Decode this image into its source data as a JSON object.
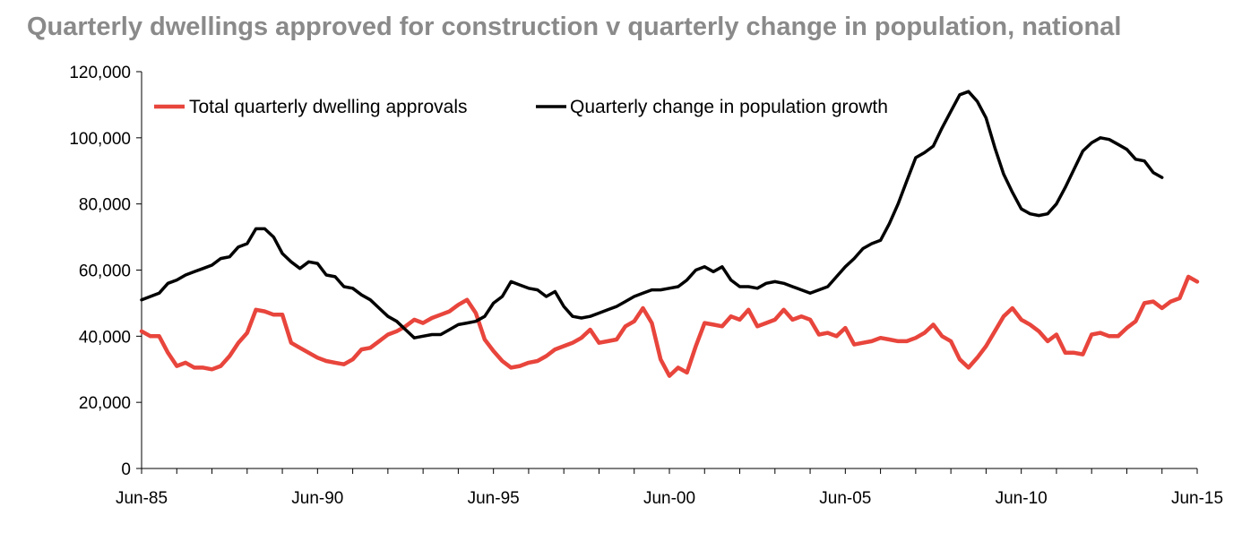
{
  "chart_data": {
    "type": "line",
    "title": "Quarterly dwellings approved for construction v quarterly change in population, national",
    "xlabel": "",
    "ylabel": "",
    "ylim": [
      0,
      120000
    ],
    "yticks": [
      "0",
      "20,000",
      "40,000",
      "60,000",
      "80,000",
      "100,000",
      "120,000"
    ],
    "xticks": [
      "Jun-85",
      "Jun-90",
      "Jun-95",
      "Jun-00",
      "Jun-05",
      "Jun-10",
      "Jun-15"
    ],
    "xlim": [
      "1985-06",
      "2015-06"
    ],
    "grid": false,
    "legend_position": "top-left",
    "series": [
      {
        "name": "Total quarterly dwelling approvals",
        "color": "#e8453c",
        "points": [
          [
            "1985-06",
            41500
          ],
          [
            "1985-09",
            40000
          ],
          [
            "1985-12",
            40000
          ],
          [
            "1986-03",
            35000
          ],
          [
            "1986-06",
            31000
          ],
          [
            "1986-09",
            32000
          ],
          [
            "1986-12",
            30500
          ],
          [
            "1987-03",
            30500
          ],
          [
            "1987-06",
            30000
          ],
          [
            "1987-09",
            31000
          ],
          [
            "1987-12",
            34000
          ],
          [
            "1988-03",
            38000
          ],
          [
            "1988-06",
            41000
          ],
          [
            "1988-09",
            48000
          ],
          [
            "1988-12",
            47500
          ],
          [
            "1989-03",
            46500
          ],
          [
            "1989-06",
            46500
          ],
          [
            "1989-09",
            38000
          ],
          [
            "1989-12",
            36500
          ],
          [
            "1990-03",
            35000
          ],
          [
            "1990-06",
            33500
          ],
          [
            "1990-09",
            32500
          ],
          [
            "1990-12",
            32000
          ],
          [
            "1991-03",
            31500
          ],
          [
            "1991-06",
            33000
          ],
          [
            "1991-09",
            36000
          ],
          [
            "1991-12",
            36500
          ],
          [
            "1992-03",
            38500
          ],
          [
            "1992-06",
            40500
          ],
          [
            "1992-09",
            41500
          ],
          [
            "1992-12",
            43000
          ],
          [
            "1993-03",
            45000
          ],
          [
            "1993-06",
            44000
          ],
          [
            "1993-09",
            45500
          ],
          [
            "1993-12",
            46500
          ],
          [
            "1994-03",
            47500
          ],
          [
            "1994-06",
            49500
          ],
          [
            "1994-09",
            51000
          ],
          [
            "1994-12",
            47000
          ],
          [
            "1995-03",
            39000
          ],
          [
            "1995-06",
            35500
          ],
          [
            "1995-09",
            32500
          ],
          [
            "1995-12",
            30500
          ],
          [
            "1996-03",
            31000
          ],
          [
            "1996-06",
            32000
          ],
          [
            "1996-09",
            32500
          ],
          [
            "1996-12",
            34000
          ],
          [
            "1997-03",
            36000
          ],
          [
            "1997-06",
            37000
          ],
          [
            "1997-09",
            38000
          ],
          [
            "1997-12",
            39500
          ],
          [
            "1998-03",
            42000
          ],
          [
            "1998-06",
            38000
          ],
          [
            "1998-09",
            38500
          ],
          [
            "1998-12",
            39000
          ],
          [
            "1999-03",
            43000
          ],
          [
            "1999-06",
            44500
          ],
          [
            "1999-09",
            48500
          ],
          [
            "1999-12",
            44000
          ],
          [
            "2000-03",
            33000
          ],
          [
            "2000-06",
            28000
          ],
          [
            "2000-09",
            30500
          ],
          [
            "2000-12",
            29000
          ],
          [
            "2001-03",
            37000
          ],
          [
            "2001-06",
            44000
          ],
          [
            "2001-09",
            43500
          ],
          [
            "2001-12",
            43000
          ],
          [
            "2002-03",
            46000
          ],
          [
            "2002-06",
            45000
          ],
          [
            "2002-09",
            48000
          ],
          [
            "2002-12",
            43000
          ],
          [
            "2003-03",
            44000
          ],
          [
            "2003-06",
            45000
          ],
          [
            "2003-09",
            48000
          ],
          [
            "2003-12",
            45000
          ],
          [
            "2004-03",
            46000
          ],
          [
            "2004-06",
            45000
          ],
          [
            "2004-09",
            40500
          ],
          [
            "2004-12",
            41000
          ],
          [
            "2005-03",
            40000
          ],
          [
            "2005-06",
            42500
          ],
          [
            "2005-09",
            37500
          ],
          [
            "2005-12",
            38000
          ],
          [
            "2006-03",
            38500
          ],
          [
            "2006-06",
            39500
          ],
          [
            "2006-09",
            39000
          ],
          [
            "2006-12",
            38500
          ],
          [
            "2007-03",
            38500
          ],
          [
            "2007-06",
            39500
          ],
          [
            "2007-09",
            41000
          ],
          [
            "2007-12",
            43500
          ],
          [
            "2008-03",
            40000
          ],
          [
            "2008-06",
            38500
          ],
          [
            "2008-09",
            33000
          ],
          [
            "2008-12",
            30500
          ],
          [
            "2009-03",
            33500
          ],
          [
            "2009-06",
            37000
          ],
          [
            "2009-09",
            41500
          ],
          [
            "2009-12",
            46000
          ],
          [
            "2010-03",
            48500
          ],
          [
            "2010-06",
            45000
          ],
          [
            "2010-09",
            43500
          ],
          [
            "2010-12",
            41500
          ],
          [
            "2011-03",
            38500
          ],
          [
            "2011-06",
            40500
          ],
          [
            "2011-09",
            35000
          ],
          [
            "2011-12",
            35000
          ],
          [
            "2012-03",
            34500
          ],
          [
            "2012-06",
            40500
          ],
          [
            "2012-09",
            41000
          ],
          [
            "2012-12",
            40000
          ],
          [
            "2013-03",
            40000
          ],
          [
            "2013-06",
            42500
          ],
          [
            "2013-09",
            44500
          ],
          [
            "2013-12",
            50000
          ],
          [
            "2014-03",
            50500
          ],
          [
            "2014-06",
            48500
          ],
          [
            "2014-09",
            50500
          ],
          [
            "2014-12",
            51500
          ],
          [
            "2015-03",
            58000
          ],
          [
            "2015-06",
            56500
          ]
        ]
      },
      {
        "name": "Quarterly change in population growth",
        "color": "#000000",
        "points": [
          [
            "1985-06",
            51000
          ],
          [
            "1985-09",
            52000
          ],
          [
            "1985-12",
            53000
          ],
          [
            "1986-03",
            56000
          ],
          [
            "1986-06",
            57000
          ],
          [
            "1986-09",
            58500
          ],
          [
            "1986-12",
            59500
          ],
          [
            "1987-03",
            60500
          ],
          [
            "1987-06",
            61500
          ],
          [
            "1987-09",
            63500
          ],
          [
            "1987-12",
            64000
          ],
          [
            "1988-03",
            67000
          ],
          [
            "1988-06",
            68000
          ],
          [
            "1988-09",
            72500
          ],
          [
            "1988-12",
            72500
          ],
          [
            "1989-03",
            70000
          ],
          [
            "1989-06",
            65000
          ],
          [
            "1989-09",
            62500
          ],
          [
            "1989-12",
            60500
          ],
          [
            "1990-03",
            62500
          ],
          [
            "1990-06",
            62000
          ],
          [
            "1990-09",
            58500
          ],
          [
            "1990-12",
            58000
          ],
          [
            "1991-03",
            55000
          ],
          [
            "1991-06",
            54500
          ],
          [
            "1991-09",
            52500
          ],
          [
            "1991-12",
            51000
          ],
          [
            "1992-03",
            48500
          ],
          [
            "1992-06",
            46000
          ],
          [
            "1992-09",
            44500
          ],
          [
            "1992-12",
            42000
          ],
          [
            "1993-03",
            39500
          ],
          [
            "1993-06",
            40000
          ],
          [
            "1993-09",
            40500
          ],
          [
            "1993-12",
            40500
          ],
          [
            "1994-03",
            42000
          ],
          [
            "1994-06",
            43500
          ],
          [
            "1994-09",
            44000
          ],
          [
            "1994-12",
            44500
          ],
          [
            "1995-03",
            46000
          ],
          [
            "1995-06",
            50000
          ],
          [
            "1995-09",
            52000
          ],
          [
            "1995-12",
            56500
          ],
          [
            "1996-03",
            55500
          ],
          [
            "1996-06",
            54500
          ],
          [
            "1996-09",
            54000
          ],
          [
            "1996-12",
            52000
          ],
          [
            "1997-03",
            53500
          ],
          [
            "1997-06",
            49000
          ],
          [
            "1997-09",
            46000
          ],
          [
            "1997-12",
            45500
          ],
          [
            "1998-03",
            46000
          ],
          [
            "1998-06",
            47000
          ],
          [
            "1998-09",
            48000
          ],
          [
            "1998-12",
            49000
          ],
          [
            "1999-03",
            50500
          ],
          [
            "1999-06",
            52000
          ],
          [
            "1999-09",
            53000
          ],
          [
            "1999-12",
            54000
          ],
          [
            "2000-03",
            54000
          ],
          [
            "2000-06",
            54500
          ],
          [
            "2000-09",
            55000
          ],
          [
            "2000-12",
            57000
          ],
          [
            "2001-03",
            60000
          ],
          [
            "2001-06",
            61000
          ],
          [
            "2001-09",
            59500
          ],
          [
            "2001-12",
            61000
          ],
          [
            "2002-03",
            57000
          ],
          [
            "2002-06",
            55000
          ],
          [
            "2002-09",
            55000
          ],
          [
            "2002-12",
            54500
          ],
          [
            "2003-03",
            56000
          ],
          [
            "2003-06",
            56500
          ],
          [
            "2003-09",
            56000
          ],
          [
            "2003-12",
            55000
          ],
          [
            "2004-03",
            54000
          ],
          [
            "2004-06",
            53000
          ],
          [
            "2004-09",
            54000
          ],
          [
            "2004-12",
            55000
          ],
          [
            "2005-03",
            58000
          ],
          [
            "2005-06",
            61000
          ],
          [
            "2005-09",
            63500
          ],
          [
            "2005-12",
            66500
          ],
          [
            "2006-03",
            68000
          ],
          [
            "2006-06",
            69000
          ],
          [
            "2006-09",
            74000
          ],
          [
            "2006-12",
            80000
          ],
          [
            "2007-03",
            87000
          ],
          [
            "2007-06",
            94000
          ],
          [
            "2007-09",
            95500
          ],
          [
            "2007-12",
            97500
          ],
          [
            "2008-03",
            103000
          ],
          [
            "2008-06",
            108000
          ],
          [
            "2008-09",
            113000
          ],
          [
            "2008-12",
            114000
          ],
          [
            "2009-03",
            111000
          ],
          [
            "2009-06",
            106000
          ],
          [
            "2009-09",
            97000
          ],
          [
            "2009-12",
            89000
          ],
          [
            "2010-03",
            83500
          ],
          [
            "2010-06",
            78500
          ],
          [
            "2010-09",
            77000
          ],
          [
            "2010-12",
            76500
          ],
          [
            "2011-03",
            77000
          ],
          [
            "2011-06",
            80000
          ],
          [
            "2011-09",
            85000
          ],
          [
            "2011-12",
            90500
          ],
          [
            "2012-03",
            96000
          ],
          [
            "2012-06",
            98500
          ],
          [
            "2012-09",
            100000
          ],
          [
            "2012-12",
            99500
          ],
          [
            "2013-03",
            98000
          ],
          [
            "2013-06",
            96500
          ],
          [
            "2013-09",
            93500
          ],
          [
            "2013-12",
            93000
          ],
          [
            "2014-03",
            89500
          ],
          [
            "2014-06",
            88000
          ]
        ]
      }
    ]
  }
}
